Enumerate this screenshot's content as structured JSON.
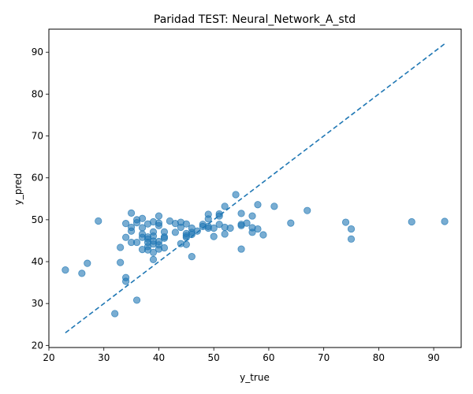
{
  "chart_data": {
    "type": "scatter",
    "title": "Paridad TEST: Neural_Network_A_std",
    "xlabel": "y_true",
    "ylabel": "y_pred",
    "xlim": [
      20,
      95
    ],
    "ylim": [
      19.5,
      95.5
    ],
    "xticks": [
      20,
      30,
      40,
      50,
      60,
      70,
      80,
      90
    ],
    "yticks": [
      20,
      30,
      40,
      50,
      60,
      70,
      80,
      90
    ],
    "grid": false,
    "point_color": "#1f77b4",
    "line_color": "#1f77b4",
    "reference_line": {
      "style": "dashed",
      "x": [
        23,
        92
      ],
      "y": [
        23,
        92
      ]
    },
    "points": [
      [
        23,
        38.0
      ],
      [
        26,
        37.2
      ],
      [
        27,
        39.6
      ],
      [
        29,
        49.7
      ],
      [
        32,
        27.6
      ],
      [
        33,
        39.8
      ],
      [
        33,
        43.4
      ],
      [
        34,
        36.2
      ],
      [
        34,
        35.3
      ],
      [
        34,
        45.8
      ],
      [
        34,
        49.1
      ],
      [
        35,
        51.6
      ],
      [
        35,
        48.2
      ],
      [
        35,
        47.3
      ],
      [
        35,
        44.6
      ],
      [
        36,
        50.0
      ],
      [
        36,
        49.3
      ],
      [
        36,
        44.6
      ],
      [
        36,
        30.8
      ],
      [
        37,
        50.3
      ],
      [
        37,
        48.1
      ],
      [
        37,
        46.6
      ],
      [
        37,
        45.8
      ],
      [
        37,
        42.9
      ],
      [
        38,
        49.0
      ],
      [
        38,
        45.9
      ],
      [
        38,
        45.4
      ],
      [
        38,
        44.6
      ],
      [
        38,
        43.6
      ],
      [
        38,
        42.8
      ],
      [
        39,
        49.5
      ],
      [
        39,
        47.1
      ],
      [
        39,
        46.1
      ],
      [
        39,
        44.9
      ],
      [
        39,
        44.2
      ],
      [
        39,
        42.2
      ],
      [
        39,
        40.5
      ],
      [
        40,
        50.9
      ],
      [
        40,
        49.2
      ],
      [
        40,
        48.6
      ],
      [
        40,
        44.8
      ],
      [
        40,
        44.0
      ],
      [
        40,
        43.0
      ],
      [
        41,
        47.1
      ],
      [
        41,
        45.9
      ],
      [
        41,
        45.6
      ],
      [
        41,
        43.3
      ],
      [
        42,
        49.7
      ],
      [
        43,
        49.1
      ],
      [
        43,
        47.0
      ],
      [
        44,
        49.4
      ],
      [
        44,
        48.2
      ],
      [
        44,
        44.3
      ],
      [
        45,
        49.0
      ],
      [
        45,
        46.7
      ],
      [
        45,
        46.2
      ],
      [
        45,
        45.8
      ],
      [
        45,
        44.1
      ],
      [
        46,
        48.0
      ],
      [
        46,
        47.0
      ],
      [
        46,
        46.5
      ],
      [
        46,
        41.2
      ],
      [
        47,
        47.3
      ],
      [
        48,
        48.9
      ],
      [
        48,
        48.4
      ],
      [
        49,
        51.3
      ],
      [
        49,
        50.2
      ],
      [
        49,
        48.4
      ],
      [
        49,
        48.0
      ],
      [
        50,
        48.0
      ],
      [
        50,
        46.0
      ],
      [
        51,
        51.4
      ],
      [
        51,
        50.9
      ],
      [
        51,
        48.9
      ],
      [
        52,
        53.2
      ],
      [
        52,
        48.2
      ],
      [
        52,
        46.6
      ],
      [
        53,
        48.0
      ],
      [
        54,
        56.0
      ],
      [
        55,
        51.5
      ],
      [
        55,
        48.9
      ],
      [
        55,
        48.6
      ],
      [
        55,
        43.0
      ],
      [
        56,
        49.2
      ],
      [
        57,
        50.9
      ],
      [
        57,
        48.1
      ],
      [
        57,
        47.0
      ],
      [
        58,
        53.6
      ],
      [
        58,
        47.8
      ],
      [
        59,
        46.4
      ],
      [
        61,
        53.2
      ],
      [
        64,
        49.2
      ],
      [
        67,
        52.2
      ],
      [
        74,
        49.4
      ],
      [
        75,
        47.8
      ],
      [
        75,
        45.4
      ],
      [
        86,
        49.5
      ],
      [
        92,
        49.6
      ]
    ]
  }
}
